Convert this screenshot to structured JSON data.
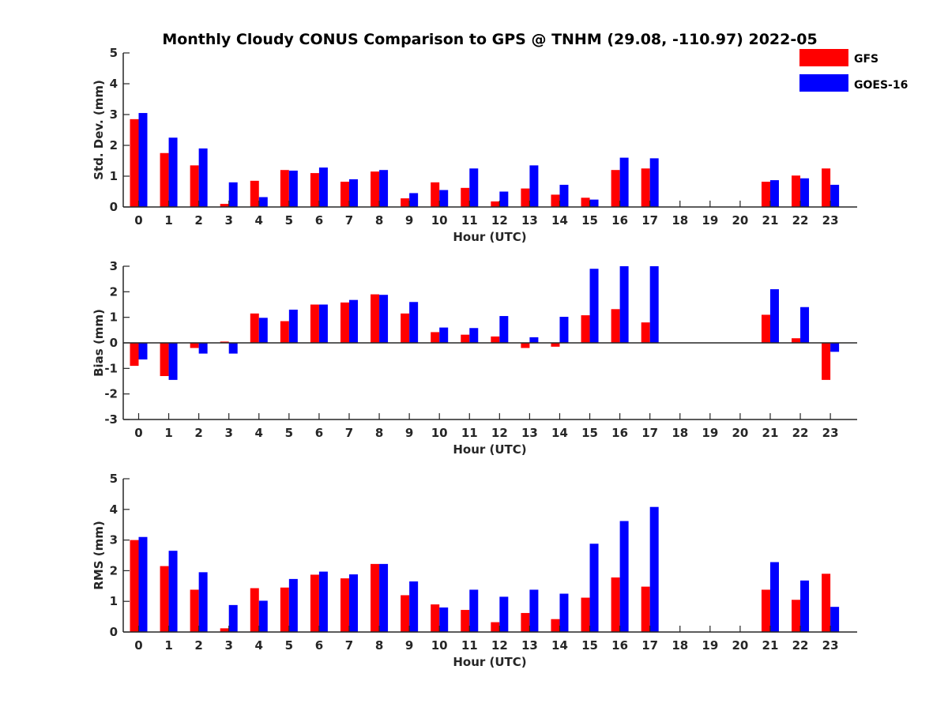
{
  "title": "Monthly Cloudy CONUS Comparison to GPS @ TNHM (29.08, -110.97) 2022-05",
  "legend": {
    "placement": "top-right",
    "items": [
      {
        "name": "GFS",
        "color": "#ff0000"
      },
      {
        "name": "GOES-16",
        "color": "#0000ff"
      }
    ]
  },
  "chart_data": [
    {
      "type": "bar",
      "xlabel": "Hour (UTC)",
      "ylabel": "Std. Dev. (mm)",
      "ylim": [
        0,
        5
      ],
      "yticks": [
        0,
        1,
        2,
        3,
        4,
        5
      ],
      "categories": [
        "0",
        "1",
        "2",
        "3",
        "4",
        "5",
        "6",
        "7",
        "8",
        "9",
        "10",
        "11",
        "12",
        "13",
        "14",
        "15",
        "16",
        "17",
        "18",
        "19",
        "20",
        "21",
        "22",
        "23"
      ],
      "series": [
        {
          "name": "GFS",
          "color": "#ff0000",
          "values": [
            2.85,
            1.75,
            1.35,
            0.1,
            0.85,
            1.2,
            1.1,
            0.82,
            1.15,
            0.28,
            0.8,
            0.62,
            0.18,
            0.6,
            0.4,
            0.3,
            1.2,
            1.25,
            null,
            null,
            null,
            0.82,
            1.02,
            1.25
          ]
        },
        {
          "name": "GOES-16",
          "color": "#0000ff",
          "values": [
            3.05,
            2.25,
            1.9,
            0.8,
            0.32,
            1.18,
            1.28,
            0.9,
            1.2,
            0.45,
            0.55,
            1.25,
            0.5,
            1.35,
            0.72,
            0.24,
            1.6,
            1.58,
            null,
            null,
            null,
            0.87,
            0.93,
            0.72
          ]
        }
      ]
    },
    {
      "type": "bar",
      "xlabel": "Hour (UTC)",
      "ylabel": "Bias (mm)",
      "ylim": [
        -3,
        3
      ],
      "yticks": [
        -3,
        -2,
        -1,
        0,
        1,
        2,
        3
      ],
      "categories": [
        "0",
        "1",
        "2",
        "3",
        "4",
        "5",
        "6",
        "7",
        "8",
        "9",
        "10",
        "11",
        "12",
        "13",
        "14",
        "15",
        "16",
        "17",
        "18",
        "19",
        "20",
        "21",
        "22",
        "23"
      ],
      "series": [
        {
          "name": "GFS",
          "color": "#ff0000",
          "values": [
            -0.9,
            -1.3,
            -0.2,
            0.05,
            1.15,
            0.85,
            1.5,
            1.58,
            1.9,
            1.15,
            0.42,
            0.32,
            0.25,
            -0.2,
            -0.15,
            1.08,
            1.32,
            0.8,
            null,
            null,
            null,
            1.1,
            0.18,
            -1.45
          ]
        },
        {
          "name": "GOES-16",
          "color": "#0000ff",
          "values": [
            -0.65,
            -1.45,
            -0.42,
            -0.42,
            0.98,
            1.3,
            1.5,
            1.68,
            1.88,
            1.6,
            0.6,
            0.58,
            1.05,
            0.22,
            1.02,
            2.9,
            3.0,
            3.0,
            null,
            null,
            null,
            2.1,
            1.4,
            -0.35
          ]
        }
      ]
    },
    {
      "type": "bar",
      "xlabel": "Hour (UTC)",
      "ylabel": "RMS (mm)",
      "ylim": [
        0,
        5
      ],
      "yticks": [
        0,
        1,
        2,
        3,
        4,
        5
      ],
      "categories": [
        "0",
        "1",
        "2",
        "3",
        "4",
        "5",
        "6",
        "7",
        "8",
        "9",
        "10",
        "11",
        "12",
        "13",
        "14",
        "15",
        "16",
        "17",
        "18",
        "19",
        "20",
        "21",
        "22",
        "23"
      ],
      "series": [
        {
          "name": "GFS",
          "color": "#ff0000",
          "values": [
            3.0,
            2.15,
            1.38,
            0.12,
            1.43,
            1.45,
            1.87,
            1.75,
            2.22,
            1.2,
            0.9,
            0.72,
            0.32,
            0.62,
            0.42,
            1.12,
            1.78,
            1.48,
            null,
            null,
            null,
            1.38,
            1.05,
            1.9
          ]
        },
        {
          "name": "GOES-16",
          "color": "#0000ff",
          "values": [
            3.1,
            2.65,
            1.95,
            0.88,
            1.02,
            1.73,
            1.97,
            1.88,
            2.22,
            1.65,
            0.8,
            1.38,
            1.15,
            1.38,
            1.25,
            2.88,
            3.62,
            4.08,
            null,
            null,
            null,
            2.28,
            1.68,
            0.82
          ]
        }
      ]
    }
  ]
}
